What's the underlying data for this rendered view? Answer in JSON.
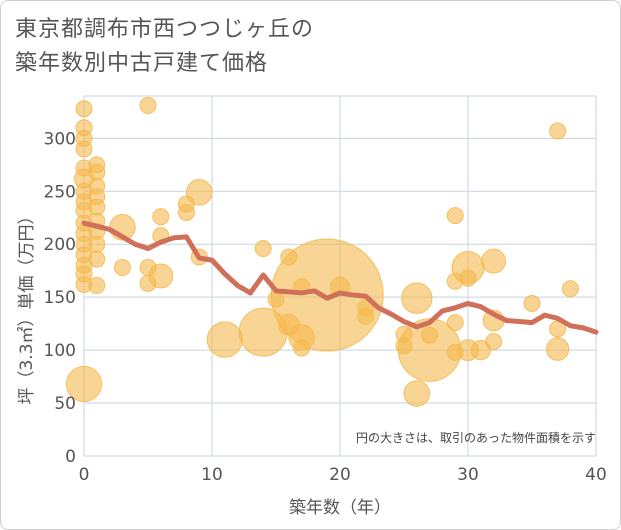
{
  "chart_data": {
    "type": "scatter",
    "title_lines": [
      "東京都調布市西つつじヶ丘の",
      "築年数別中古戸建て価格"
    ],
    "xlabel": "築年数（年）",
    "ylabel": "坪（3.3㎡）単価（万円）",
    "note": "円の大きさは、取引のあった物件面積を示す",
    "xlim": [
      0,
      40
    ],
    "ylim": [
      0,
      340
    ],
    "x_ticks": [
      "0",
      "10",
      "20",
      "30",
      "40"
    ],
    "y_ticks": [
      "0",
      "50",
      "100",
      "150",
      "200",
      "250",
      "300"
    ],
    "grid": true,
    "colors": {
      "bubble": "#f5b94f",
      "line": "#d0705a",
      "grid": "#c9d3e0"
    },
    "points": [
      {
        "x": 0,
        "y": 328,
        "s": 1
      },
      {
        "x": 0,
        "y": 310,
        "s": 1
      },
      {
        "x": 0,
        "y": 300,
        "s": 1
      },
      {
        "x": 0,
        "y": 290,
        "s": 1
      },
      {
        "x": 0,
        "y": 272,
        "s": 1
      },
      {
        "x": 0,
        "y": 262,
        "s": 1.2
      },
      {
        "x": 0,
        "y": 250,
        "s": 1
      },
      {
        "x": 0,
        "y": 240,
        "s": 1
      },
      {
        "x": 0,
        "y": 232,
        "s": 1
      },
      {
        "x": 0,
        "y": 220,
        "s": 1
      },
      {
        "x": 0,
        "y": 210,
        "s": 1
      },
      {
        "x": 0,
        "y": 200,
        "s": 1
      },
      {
        "x": 0,
        "y": 190,
        "s": 1
      },
      {
        "x": 0,
        "y": 180,
        "s": 1
      },
      {
        "x": 0,
        "y": 172,
        "s": 1
      },
      {
        "x": 0,
        "y": 162,
        "s": 1
      },
      {
        "x": 0,
        "y": 68,
        "s": 2.2
      },
      {
        "x": 1,
        "y": 275,
        "s": 1
      },
      {
        "x": 1,
        "y": 268,
        "s": 1
      },
      {
        "x": 1,
        "y": 255,
        "s": 1
      },
      {
        "x": 1,
        "y": 245,
        "s": 1
      },
      {
        "x": 1,
        "y": 235,
        "s": 1
      },
      {
        "x": 1,
        "y": 222,
        "s": 1
      },
      {
        "x": 1,
        "y": 212,
        "s": 1
      },
      {
        "x": 1,
        "y": 200,
        "s": 1
      },
      {
        "x": 1,
        "y": 186,
        "s": 1
      },
      {
        "x": 1,
        "y": 161,
        "s": 1
      },
      {
        "x": 3,
        "y": 216,
        "s": 1.6
      },
      {
        "x": 3,
        "y": 178,
        "s": 1
      },
      {
        "x": 5,
        "y": 331,
        "s": 1
      },
      {
        "x": 5,
        "y": 178,
        "s": 1
      },
      {
        "x": 5,
        "y": 163,
        "s": 1
      },
      {
        "x": 6,
        "y": 226,
        "s": 1
      },
      {
        "x": 6,
        "y": 208,
        "s": 1
      },
      {
        "x": 6,
        "y": 170,
        "s": 1.5
      },
      {
        "x": 8,
        "y": 238,
        "s": 1
      },
      {
        "x": 8,
        "y": 230,
        "s": 1
      },
      {
        "x": 9,
        "y": 249,
        "s": 1.6
      },
      {
        "x": 9,
        "y": 188,
        "s": 1
      },
      {
        "x": 11,
        "y": 110,
        "s": 2.2
      },
      {
        "x": 14,
        "y": 196,
        "s": 1
      },
      {
        "x": 14,
        "y": 117,
        "s": 3.0
      },
      {
        "x": 15,
        "y": 148,
        "s": 1
      },
      {
        "x": 16,
        "y": 188,
        "s": 1
      },
      {
        "x": 16,
        "y": 124,
        "s": 1.3
      },
      {
        "x": 17,
        "y": 112,
        "s": 1.6
      },
      {
        "x": 17,
        "y": 102,
        "s": 1
      },
      {
        "x": 17,
        "y": 160,
        "s": 1
      },
      {
        "x": 19,
        "y": 152,
        "s": 7.0
      },
      {
        "x": 20,
        "y": 160,
        "s": 1.2
      },
      {
        "x": 22,
        "y": 140,
        "s": 1
      },
      {
        "x": 22,
        "y": 132,
        "s": 1
      },
      {
        "x": 25,
        "y": 115,
        "s": 1
      },
      {
        "x": 25,
        "y": 104,
        "s": 1
      },
      {
        "x": 26,
        "y": 149,
        "s": 1.9
      },
      {
        "x": 26,
        "y": 59,
        "s": 1.6
      },
      {
        "x": 27,
        "y": 100,
        "s": 3.9
      },
      {
        "x": 27,
        "y": 114,
        "s": 1
      },
      {
        "x": 29,
        "y": 227,
        "s": 1
      },
      {
        "x": 29,
        "y": 165,
        "s": 1
      },
      {
        "x": 29,
        "y": 126,
        "s": 1
      },
      {
        "x": 29,
        "y": 98,
        "s": 1
      },
      {
        "x": 30,
        "y": 178,
        "s": 2.0
      },
      {
        "x": 30,
        "y": 168,
        "s": 1
      },
      {
        "x": 30,
        "y": 100,
        "s": 1.3
      },
      {
        "x": 31,
        "y": 100,
        "s": 1.2
      },
      {
        "x": 32,
        "y": 184,
        "s": 1.5
      },
      {
        "x": 32,
        "y": 128,
        "s": 1.3
      },
      {
        "x": 32,
        "y": 108,
        "s": 1
      },
      {
        "x": 35,
        "y": 144,
        "s": 1
      },
      {
        "x": 37,
        "y": 307,
        "s": 1
      },
      {
        "x": 37,
        "y": 120,
        "s": 1
      },
      {
        "x": 37,
        "y": 101,
        "s": 1.4
      },
      {
        "x": 38,
        "y": 158,
        "s": 1
      }
    ],
    "line": {
      "x": [
        0,
        1,
        2,
        3,
        4,
        5,
        6,
        7,
        8,
        9,
        10,
        11,
        12,
        13,
        14,
        15,
        16,
        17,
        18,
        19,
        20,
        21,
        22,
        23,
        24,
        25,
        26,
        27,
        28,
        29,
        30,
        31,
        32,
        33,
        34,
        35,
        36,
        37,
        38,
        39,
        40
      ],
      "y": [
        220,
        217,
        214,
        207,
        200,
        196,
        202,
        206,
        207,
        187,
        185,
        172,
        161,
        154,
        171,
        156,
        155,
        154,
        156,
        149,
        154,
        152,
        151,
        140,
        134,
        127,
        122,
        126,
        137,
        140,
        144,
        141,
        134,
        128,
        127,
        126,
        133,
        130,
        123,
        121,
        117
      ]
    }
  }
}
